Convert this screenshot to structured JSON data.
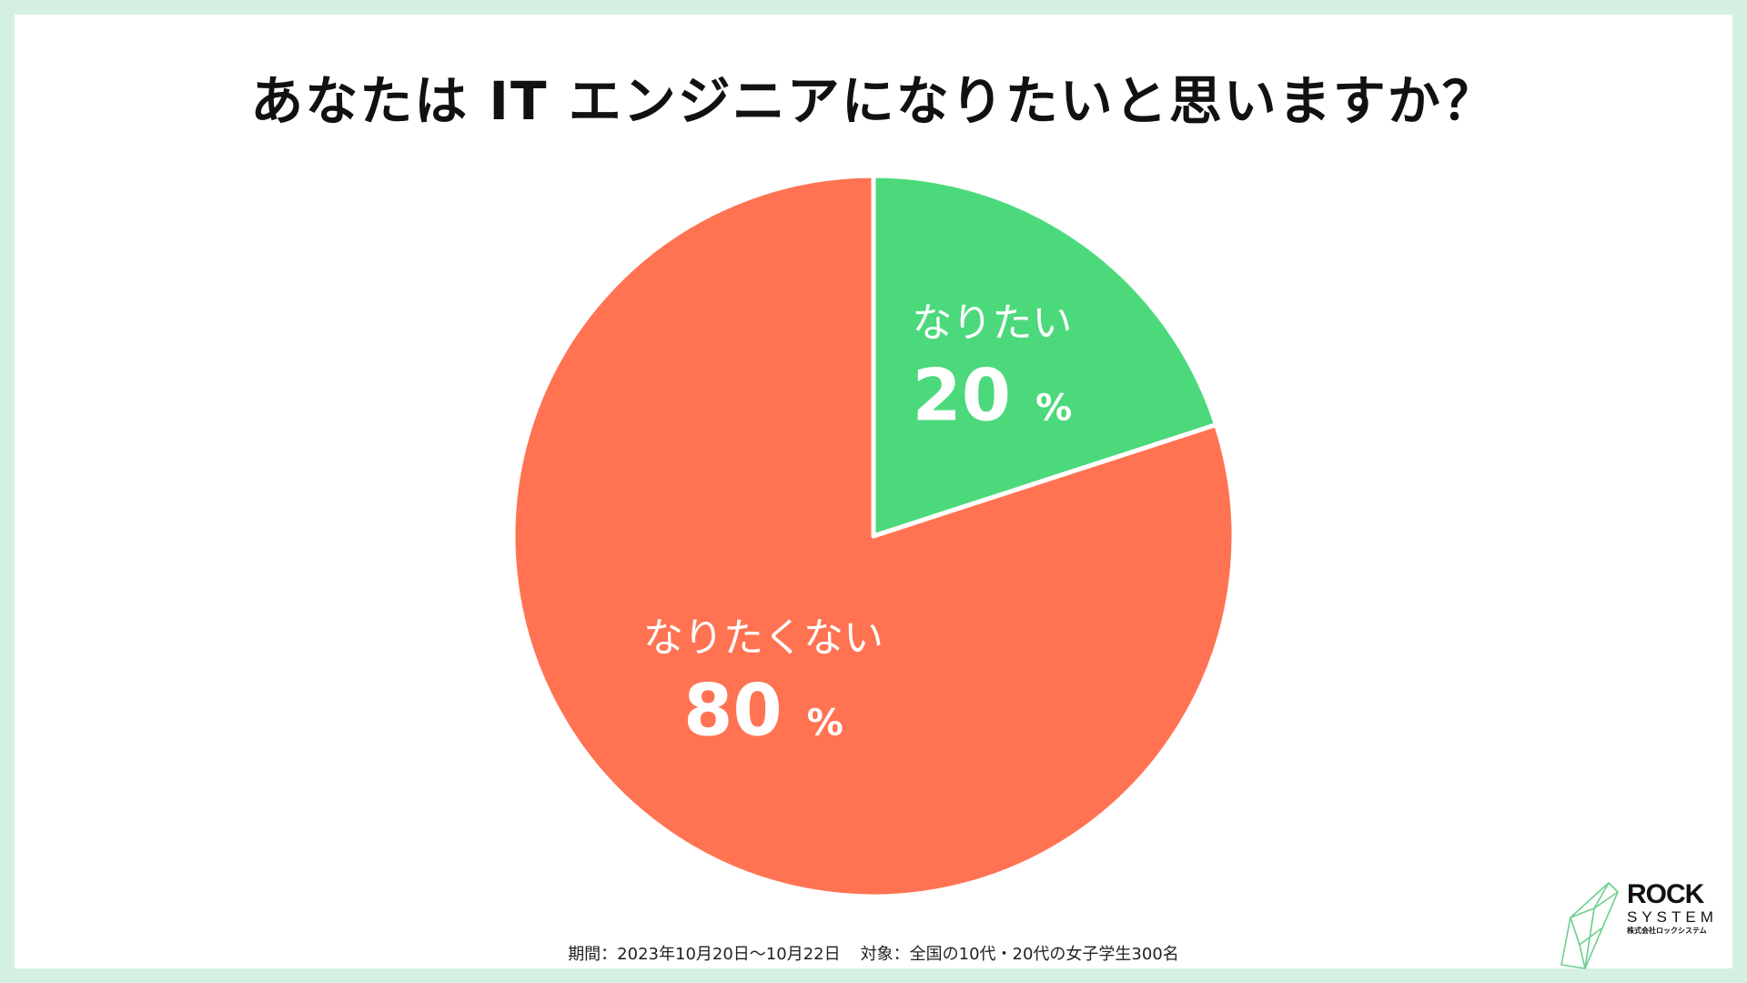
{
  "title": "あなたは IT エンジニアになりたいと思いますか？",
  "footnote": {
    "period": "期間：2023年10月20日〜10月22日",
    "target": "対象：全国の10代・20代の女子学生300名"
  },
  "logo": {
    "main": "ROCK",
    "sub": "SYSTEM",
    "company": "株式会社ロックシステム"
  },
  "colors": {
    "yes": "#4cd97b",
    "no": "#ff7353",
    "background": "#d4f0e3"
  },
  "chart_data": {
    "type": "pie",
    "title": "あなたは IT エンジニアになりたいと思いますか？",
    "unit": "%",
    "slices": [
      {
        "label": "なりたい",
        "value": 20,
        "color": "#4cd97b"
      },
      {
        "label": "なりたくない",
        "value": 80,
        "color": "#ff7353"
      }
    ]
  }
}
